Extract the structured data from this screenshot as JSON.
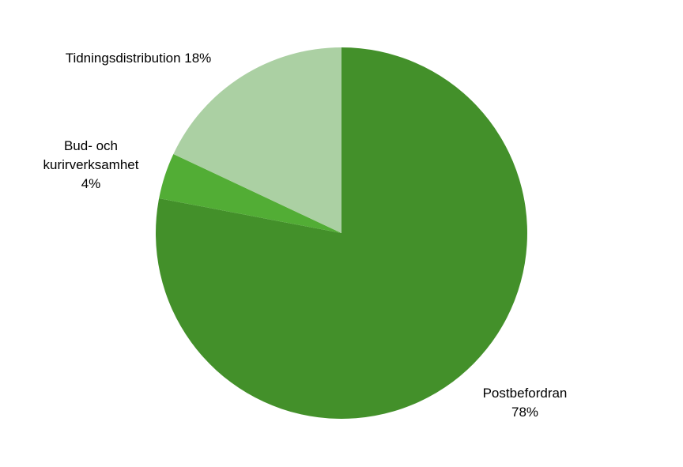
{
  "chart_data": {
    "type": "pie",
    "categories": [
      "Postbefordran",
      "Bud- och kurirverksamhet",
      "Tidningsdistribution"
    ],
    "values": [
      78,
      4,
      18
    ],
    "value_labels": [
      "78%",
      "4%",
      "18%"
    ],
    "colors": [
      "#43902a",
      "#52ad35",
      "#abd0a3"
    ]
  }
}
